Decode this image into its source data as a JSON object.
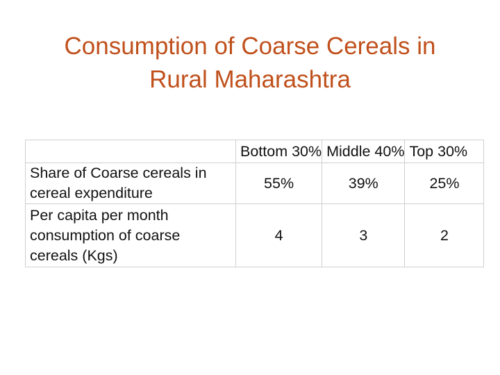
{
  "title": {
    "line1": "Consumption of Coarse Cereals in",
    "line2": "Rural Maharashtra"
  },
  "table": {
    "columns": [
      "Bottom 30%",
      "Middle 40%",
      "Top 30%"
    ],
    "rows": [
      {
        "label": "Share of Coarse cereals in cereal expenditure",
        "values": [
          "55%",
          "39%",
          "25%"
        ]
      },
      {
        "label": "Per capita per month consumption of coarse cereals (Kgs)",
        "values": [
          "4",
          "3",
          "2"
        ]
      }
    ]
  },
  "colors": {
    "title": "#c0501c",
    "grid": "#cfcfcf",
    "text": "#111111"
  }
}
